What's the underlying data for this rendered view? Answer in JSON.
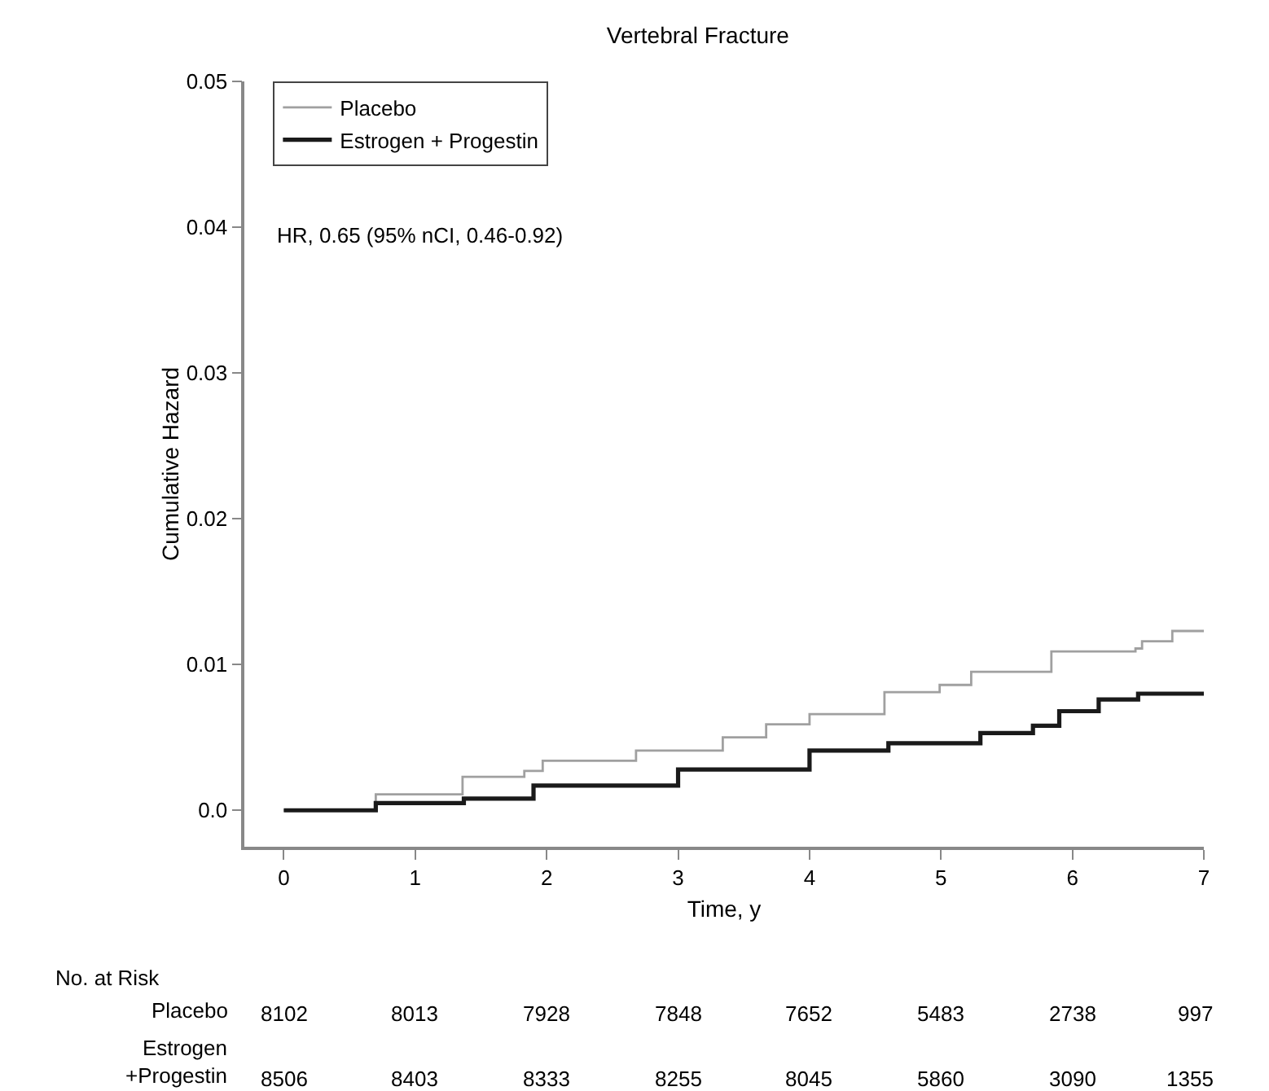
{
  "chart_data": {
    "type": "step",
    "title": "Vertebral Fracture",
    "xlabel": "Time, y",
    "ylabel": "Cumulative Hazard",
    "xlim": [
      -0.3,
      7
    ],
    "xticks": [
      0,
      1,
      2,
      3,
      4,
      5,
      6,
      7
    ],
    "ylim": [
      -0.0025,
      0.05
    ],
    "yticks": [
      {
        "value": 0,
        "label": "0.0"
      },
      0.01,
      0.02,
      0.03,
      0.04,
      0.05
    ],
    "grid": false,
    "legend": "top left",
    "marker": "none",
    "line_style": "solid",
    "series": [
      {
        "name": "Placebo",
        "color": "#a0a0a0",
        "x": [
          0,
          0.7,
          1.36,
          1.83,
          1.97,
          2.68,
          3.34,
          3.67,
          4.0,
          4.57,
          4.99,
          5.23,
          5.63,
          5.84,
          6.48,
          6.53,
          6.76,
          7.0
        ],
        "values": [
          0,
          0.0011,
          0.0023,
          0.0027,
          0.0034,
          0.0041,
          0.005,
          0.0059,
          0.0066,
          0.0081,
          0.0086,
          0.0095,
          0.0095,
          0.0109,
          0.0111,
          0.0116,
          0.0123,
          0.0123
        ]
      },
      {
        "name": "Estrogen + Progestin",
        "color": "#1a1a1a",
        "x": [
          0,
          0.7,
          1.37,
          1.9,
          3.0,
          4.0,
          4.6,
          5.3,
          5.7,
          5.9,
          6.2,
          6.5,
          7.0
        ],
        "values": [
          0,
          0.0005,
          0.0008,
          0.0017,
          0.0028,
          0.0041,
          0.0046,
          0.0053,
          0.0058,
          0.0068,
          0.0076,
          0.008,
          0.008
        ]
      }
    ],
    "annotations": [
      "HR, 0.65 (95% nCI, 0.46-0.92)",
      "No. at Risk",
      "Placebo",
      "8102",
      "8013",
      "7928",
      "7848",
      "7652",
      "5483",
      "2738",
      "997",
      "Estrogen\n+Progestin",
      "8506",
      "8403",
      "8333",
      "8255",
      "8045",
      "5860",
      "3090",
      "1355"
    ]
  }
}
